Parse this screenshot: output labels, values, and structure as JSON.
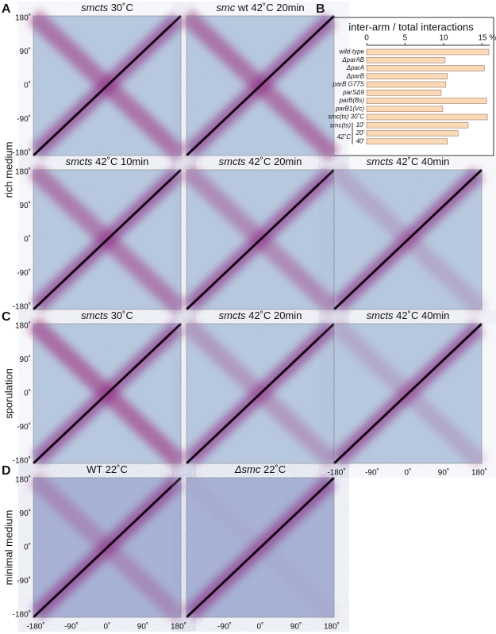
{
  "panel_letters": [
    "A",
    "B",
    "C",
    "D"
  ],
  "row_labels": [
    "rich medium",
    "sporulation",
    "minimal medium"
  ],
  "axis_ticks": [
    "180˚",
    "90˚",
    "0˚",
    "-90˚",
    "-180˚"
  ],
  "maps": [
    {
      "italic": "smcts",
      "rest": " 30˚C"
    },
    {
      "italic": "smc",
      "rest": " wt 42˚C 20min"
    },
    {
      "italic": "smcts",
      "rest": " 42˚C 10min"
    },
    {
      "italic": "smcts",
      "rest": " 42˚C 20min"
    },
    {
      "italic": "smcts",
      "rest": " 42˚C 40min"
    },
    {
      "italic": "smcts",
      "rest": " 30˚C"
    },
    {
      "italic": "smcts",
      "rest": " 42˚C 20min"
    },
    {
      "italic": "smcts",
      "rest": " 42˚C 40min"
    },
    {
      "rest": "WT 22˚C"
    },
    {
      "italic": "Δsmc",
      "rest": " 22˚C"
    }
  ],
  "chart_data": {
    "type": "bar",
    "orientation": "horizontal",
    "title": "inter-arm / total interactions",
    "categories": [
      "wild-type",
      "ΔparAB",
      "ΔparA",
      "ΔparB",
      "parB G77S",
      "parSΔ9",
      "parB(Bs)",
      "parB1(Vc)",
      "smc(ts) 30˚C",
      "10'",
      "20'",
      "40'"
    ],
    "values": [
      15.9,
      10.2,
      15.3,
      10.5,
      10.3,
      9.7,
      15.6,
      9.9,
      15.7,
      13.2,
      11.9,
      10.5
    ],
    "color": "#fad9b6",
    "group_labels": [
      "smc(ts)",
      "42˚C"
    ],
    "xlim": [
      0,
      16
    ],
    "xticks": [
      0,
      5,
      10,
      {
        "value": 15,
        "label": "15 %"
      }
    ]
  }
}
